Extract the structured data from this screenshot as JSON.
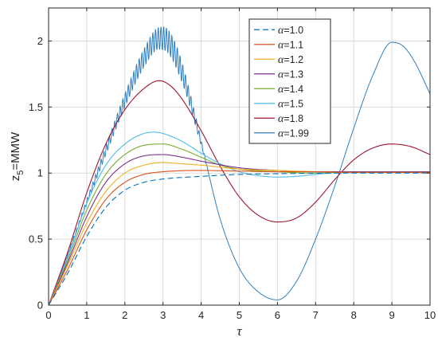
{
  "chart_data": {
    "type": "line",
    "xlabel": "τ",
    "ylabel_main": "z",
    "ylabel_sub": "5",
    "ylabel_rest": "=MMW",
    "xlim": [
      0,
      10
    ],
    "ylim": [
      0,
      2.25
    ],
    "xticks": [
      "0",
      "1",
      "2",
      "3",
      "4",
      "5",
      "6",
      "7",
      "8",
      "9",
      "10"
    ],
    "yticks": [
      "0",
      "0.5",
      "1",
      "1.5",
      "2"
    ],
    "grid": true,
    "legend_position": "top-right",
    "series": [
      {
        "name": "α=1.0",
        "symbol": "α",
        "rest": "=1.0",
        "color": "#0072BD",
        "dash": true,
        "points": [
          [
            0,
            0
          ],
          [
            0.5,
            0.24
          ],
          [
            1,
            0.52
          ],
          [
            1.5,
            0.74
          ],
          [
            2,
            0.87
          ],
          [
            2.5,
            0.93
          ],
          [
            3,
            0.955
          ],
          [
            4,
            0.975
          ],
          [
            5,
            0.99
          ],
          [
            6,
            0.995
          ],
          [
            7,
            0.999
          ],
          [
            8,
            1.0
          ],
          [
            9,
            1.0
          ],
          [
            10,
            1.0
          ]
        ]
      },
      {
        "name": "α=1.1",
        "symbol": "α",
        "rest": "=1.1",
        "color": "#D95319",
        "points": [
          [
            0,
            0
          ],
          [
            0.5,
            0.27
          ],
          [
            1,
            0.57
          ],
          [
            1.5,
            0.8
          ],
          [
            2,
            0.93
          ],
          [
            2.5,
            0.99
          ],
          [
            3,
            1.01
          ],
          [
            4,
            1.02
          ],
          [
            5,
            1.015
          ],
          [
            6,
            1.01
          ],
          [
            7,
            1.01
          ],
          [
            8,
            1.005
          ],
          [
            9,
            1.005
          ],
          [
            10,
            1.005
          ]
        ]
      },
      {
        "name": "α=1.2",
        "symbol": "α",
        "rest": "=1.2",
        "color": "#EDB120",
        "points": [
          [
            0,
            0
          ],
          [
            0.5,
            0.3
          ],
          [
            1,
            0.62
          ],
          [
            1.5,
            0.86
          ],
          [
            2,
            1.0
          ],
          [
            2.5,
            1.06
          ],
          [
            3,
            1.08
          ],
          [
            3.5,
            1.07
          ],
          [
            4,
            1.06
          ],
          [
            5,
            1.03
          ],
          [
            6,
            1.02
          ],
          [
            7,
            1.01
          ],
          [
            8,
            1.005
          ],
          [
            9,
            1.005
          ],
          [
            10,
            1.005
          ]
        ]
      },
      {
        "name": "α=1.3",
        "symbol": "α",
        "rest": "=1.3",
        "color": "#7E2F8E",
        "points": [
          [
            0,
            0
          ],
          [
            0.5,
            0.32
          ],
          [
            1,
            0.67
          ],
          [
            1.5,
            0.93
          ],
          [
            2,
            1.07
          ],
          [
            2.5,
            1.13
          ],
          [
            3,
            1.14
          ],
          [
            3.5,
            1.12
          ],
          [
            4,
            1.09
          ],
          [
            5,
            1.04
          ],
          [
            6,
            1.02
          ],
          [
            7,
            1.01
          ],
          [
            8,
            1.01
          ],
          [
            9,
            1.01
          ],
          [
            10,
            1.01
          ]
        ]
      },
      {
        "name": "α=1.4",
        "symbol": "α",
        "rest": "=1.4",
        "color": "#77AC30",
        "points": [
          [
            0,
            0
          ],
          [
            0.5,
            0.34
          ],
          [
            1,
            0.72
          ],
          [
            1.5,
            0.99
          ],
          [
            2,
            1.14
          ],
          [
            2.5,
            1.21
          ],
          [
            3,
            1.22
          ],
          [
            3.5,
            1.18
          ],
          [
            4,
            1.12
          ],
          [
            4.5,
            1.06
          ],
          [
            5,
            1.03
          ],
          [
            6,
            1.01
          ],
          [
            7,
            1.0
          ],
          [
            8,
            1.01
          ],
          [
            9,
            1.01
          ],
          [
            10,
            1.01
          ]
        ]
      },
      {
        "name": "α=1.5",
        "symbol": "α",
        "rest": "=1.5",
        "color": "#4DBEEE",
        "points": [
          [
            0,
            0
          ],
          [
            0.5,
            0.36
          ],
          [
            1,
            0.77
          ],
          [
            1.5,
            1.06
          ],
          [
            2,
            1.22
          ],
          [
            2.5,
            1.3
          ],
          [
            2.8,
            1.31
          ],
          [
            3,
            1.3
          ],
          [
            3.5,
            1.24
          ],
          [
            4,
            1.15
          ],
          [
            4.5,
            1.07
          ],
          [
            5,
            1.01
          ],
          [
            5.5,
            0.98
          ],
          [
            6,
            0.97
          ],
          [
            6.5,
            0.975
          ],
          [
            7,
            0.99
          ],
          [
            8,
            1.01
          ],
          [
            9,
            1.01
          ],
          [
            10,
            1.005
          ]
        ]
      },
      {
        "name": "α=1.8",
        "symbol": "α",
        "rest": "=1.8",
        "color": "#A2142F",
        "points": [
          [
            0,
            0
          ],
          [
            0.5,
            0.4
          ],
          [
            1,
            0.85
          ],
          [
            1.5,
            1.22
          ],
          [
            2,
            1.48
          ],
          [
            2.5,
            1.64
          ],
          [
            2.9,
            1.7
          ],
          [
            3.2,
            1.66
          ],
          [
            3.5,
            1.56
          ],
          [
            4,
            1.32
          ],
          [
            4.5,
            1.05
          ],
          [
            5,
            0.82
          ],
          [
            5.5,
            0.68
          ],
          [
            6,
            0.63
          ],
          [
            6.5,
            0.66
          ],
          [
            7,
            0.78
          ],
          [
            7.5,
            0.95
          ],
          [
            8,
            1.1
          ],
          [
            8.5,
            1.19
          ],
          [
            9,
            1.22
          ],
          [
            9.5,
            1.2
          ],
          [
            10,
            1.14
          ]
        ]
      },
      {
        "name": "α=1.99",
        "symbol": "α",
        "rest": "=1.99",
        "color": "#2F7FC1",
        "oscillating": true,
        "points": [
          [
            0,
            0
          ],
          [
            0.5,
            0.38
          ],
          [
            1,
            0.78
          ],
          [
            1.5,
            1.17
          ],
          [
            2,
            1.55
          ],
          [
            2.5,
            1.87
          ],
          [
            2.9,
            2.02
          ],
          [
            3,
            2.02
          ],
          [
            3.2,
            1.97
          ],
          [
            3.5,
            1.76
          ],
          [
            4,
            1.23
          ],
          [
            4.5,
            0.65
          ],
          [
            5,
            0.28
          ],
          [
            5.5,
            0.1
          ],
          [
            6,
            0.04
          ],
          [
            6.5,
            0.18
          ],
          [
            7,
            0.5
          ],
          [
            7.5,
            0.9
          ],
          [
            8,
            1.34
          ],
          [
            8.5,
            1.74
          ],
          [
            9,
            1.99
          ],
          [
            9.3,
            1.96
          ],
          [
            9.6,
            1.84
          ],
          [
            10,
            1.6
          ]
        ]
      }
    ]
  }
}
